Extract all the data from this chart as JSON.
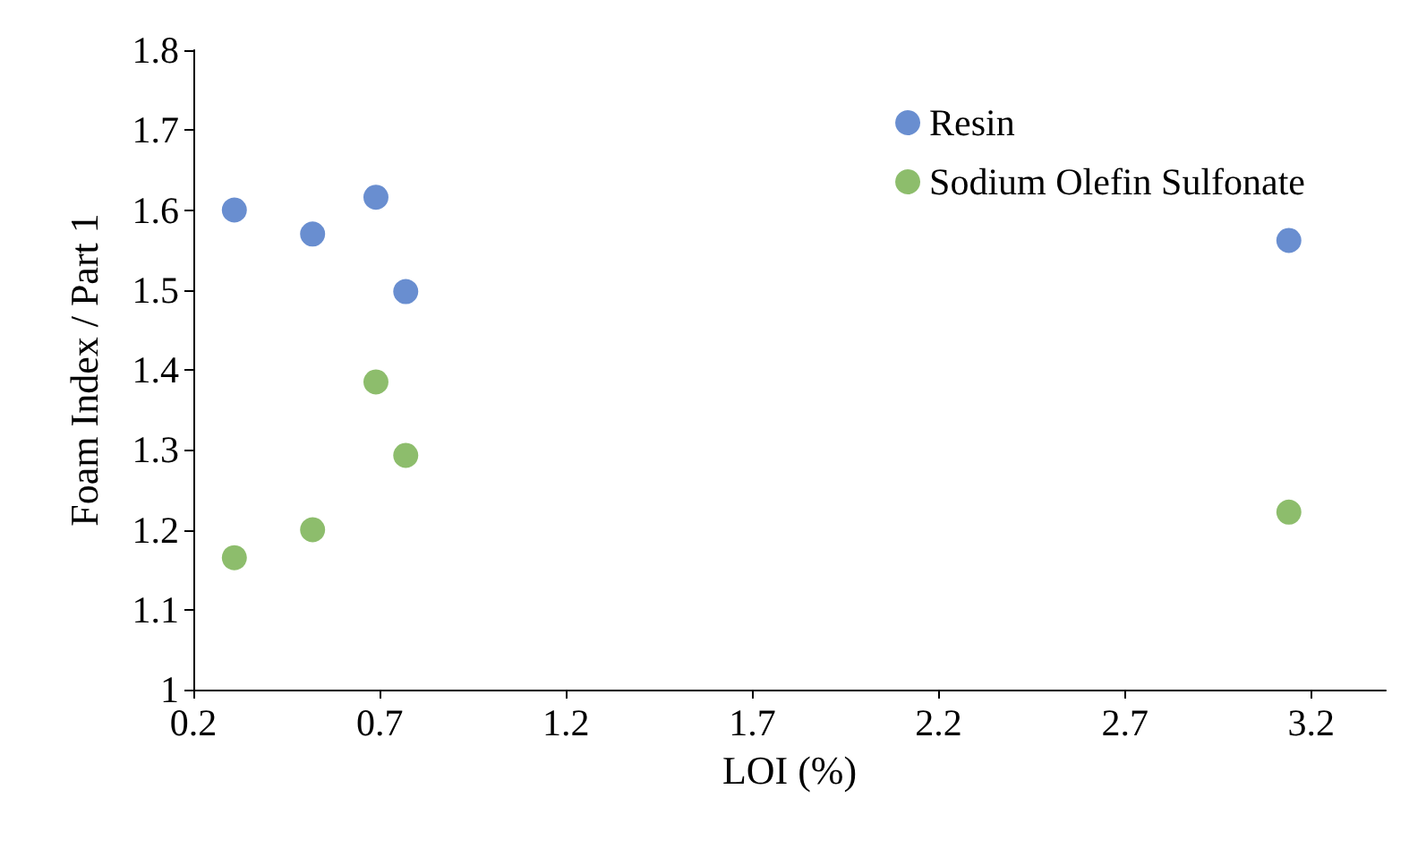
{
  "chart_data": {
    "type": "scatter",
    "xlabel": "LOI (%)",
    "ylabel": "Foam Index / Part 1",
    "xlim": [
      0.2,
      3.4
    ],
    "xticks": [
      0.2,
      0.7,
      1.2,
      1.7,
      2.2,
      2.7,
      3.2
    ],
    "ylim": [
      1,
      1.8
    ],
    "yticks": [
      1,
      1.1,
      1.2,
      1.3,
      1.4,
      1.5,
      1.6,
      1.7,
      1.8
    ],
    "grid": false,
    "legend": "top right",
    "marker": "circle",
    "series": [
      {
        "name": "Resin",
        "color": "#4472c4",
        "x": [
          0.31,
          0.52,
          0.69,
          0.77,
          3.14
        ],
        "values": [
          1.6,
          1.57,
          1.616,
          1.498,
          1.562
        ]
      },
      {
        "name": "Sodium Olefin Sulfonate",
        "color": "#70ad47",
        "x": [
          0.31,
          0.52,
          0.69,
          0.77,
          3.14
        ],
        "values": [
          1.165,
          1.2,
          1.385,
          1.293,
          1.222
        ]
      }
    ]
  }
}
